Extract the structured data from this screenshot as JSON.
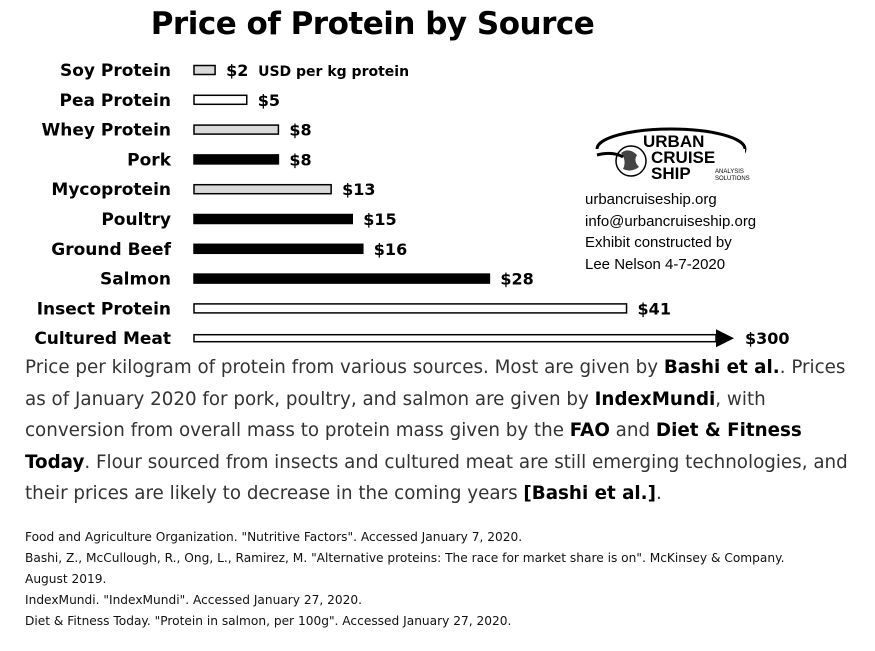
{
  "chart_data": {
    "type": "bar",
    "title": "Price of Protein by Source",
    "unit_label": "USD per kg protein",
    "categories": [
      "Soy Protein",
      "Pea Protein",
      "Whey Protein",
      "Pork",
      "Mycoprotein",
      "Poultry",
      "Ground Beef",
      "Salmon",
      "Insect Protein",
      "Cultured Meat"
    ],
    "values": [
      2,
      5,
      8,
      8,
      13,
      15,
      16,
      28,
      41,
      300
    ],
    "value_labels": [
      "$2",
      "$5",
      "$8",
      "$8",
      "$13",
      "$15",
      "$16",
      "$28",
      "$41",
      "$300"
    ],
    "bar_styles": [
      "light",
      "outline",
      "light",
      "dark",
      "light",
      "dark",
      "dark",
      "dark",
      "outline",
      "arrow"
    ],
    "note": "",
    "orientation": "horizontal"
  },
  "colors": {
    "dark": "#000000",
    "light": "#d9d9d9",
    "outline": "#ffffff"
  },
  "logo": {
    "line1": "URBAN",
    "line2": "CRUISE",
    "line3": "SHIP",
    "tag1": "ANALYSIS",
    "tag2": "SOLUTIONS"
  },
  "contact": {
    "website": "urbancruiseship.org",
    "email": "info@urbancruiseship.org",
    "credit1": "Exhibit constructed by",
    "credit2": "Lee Nelson 4-7-2020"
  },
  "caption": {
    "p1": "Price per kilogram of protein from various sources. Most are given by ",
    "b1": "Bashi et al.",
    "p2": ". Prices as of January 2020 for pork, poultry, and salmon are given by ",
    "b2": "IndexMundi",
    "p3": ", with conversion from overall mass to protein mass given by the ",
    "b3": "FAO",
    "p4": " and ",
    "b4": "Diet & Fitness Today",
    "p5": ". Flour sourced from insects and cultured meat are still emerging technologies, and their prices are likely to decrease in the coming years ",
    "b5": "[Bashi et al.]",
    "p6": "."
  },
  "references": [
    "Food and Agriculture Organization. \"Nutritive Factors\". Accessed January 7, 2020.",
    "Bashi, Z., McCullough, R., Ong, L., Ramirez, M. \"Alternative proteins: The race for market share is on\". McKinsey & Company. August 2019.",
    "IndexMundi. \"IndexMundi\". Accessed January 27, 2020.",
    "Diet & Fitness Today. \"Protein in salmon, per 100g\". Accessed January 27, 2020."
  ]
}
